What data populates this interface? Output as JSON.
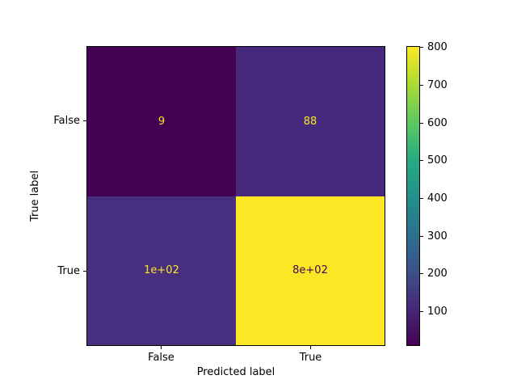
{
  "chart_data": {
    "type": "heatmap",
    "subtype": "confusion-matrix",
    "title": "",
    "xlabel": "Predicted label",
    "ylabel": "True label",
    "x_tick_labels": [
      "False",
      "True"
    ],
    "y_tick_labels": [
      "False",
      "True"
    ],
    "cells": [
      {
        "true_label": "False",
        "predicted_label": "False",
        "display": "9",
        "value": 9,
        "bg": "#440154",
        "text_color": "#fde725"
      },
      {
        "true_label": "False",
        "predicted_label": "True",
        "display": "88",
        "value": 88,
        "bg": "#46287c",
        "text_color": "#fde725"
      },
      {
        "true_label": "True",
        "predicted_label": "False",
        "display": "1e+02",
        "value": 100,
        "bg": "#472e7e",
        "text_color": "#fde725"
      },
      {
        "true_label": "True",
        "predicted_label": "True",
        "display": "8e+02",
        "value": 800,
        "bg": "#fde725",
        "text_color": "#440154"
      }
    ],
    "colorbar": {
      "cmap": "viridis",
      "vmin": 9,
      "vmax": 804,
      "ticks": [
        "100",
        "200",
        "300",
        "400",
        "500",
        "600",
        "700",
        "800"
      ],
      "gradient_stops": [
        "#440154",
        "#482878",
        "#3b528b",
        "#2c728e",
        "#21918c",
        "#27ad81",
        "#5ec962",
        "#aadc32",
        "#fde725"
      ]
    },
    "legend": null,
    "grid": false
  }
}
